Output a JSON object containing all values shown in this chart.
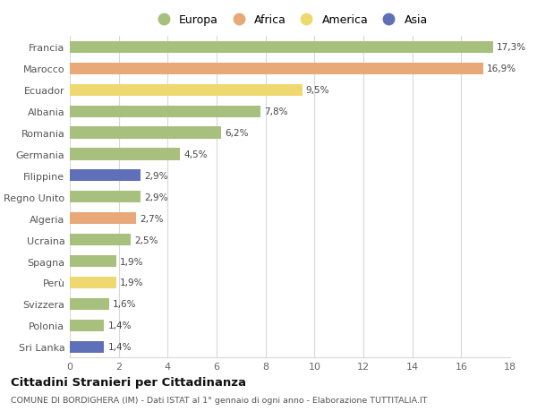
{
  "countries": [
    "Francia",
    "Marocco",
    "Ecuador",
    "Albania",
    "Romania",
    "Germania",
    "Filippine",
    "Regno Unito",
    "Algeria",
    "Ucraina",
    "Spagna",
    "Perù",
    "Svizzera",
    "Polonia",
    "Sri Lanka"
  ],
  "values": [
    17.3,
    16.9,
    9.5,
    7.8,
    6.2,
    4.5,
    2.9,
    2.9,
    2.7,
    2.5,
    1.9,
    1.9,
    1.6,
    1.4,
    1.4
  ],
  "labels": [
    "17,3%",
    "16,9%",
    "9,5%",
    "7,8%",
    "6,2%",
    "4,5%",
    "2,9%",
    "2,9%",
    "2,7%",
    "2,5%",
    "1,9%",
    "1,9%",
    "1,6%",
    "1,4%",
    "1,4%"
  ],
  "continents": [
    "Europa",
    "Africa",
    "America",
    "Europa",
    "Europa",
    "Europa",
    "Asia",
    "Europa",
    "Africa",
    "Europa",
    "Europa",
    "America",
    "Europa",
    "Europa",
    "Asia"
  ],
  "colors": {
    "Europa": "#a8c07e",
    "Africa": "#e8a878",
    "America": "#f0d870",
    "Asia": "#6070b8"
  },
  "title": "Cittadini Stranieri per Cittadinanza",
  "subtitle": "COMUNE DI BORDIGHERA (IM) - Dati ISTAT al 1° gennaio di ogni anno - Elaborazione TUTTITALIA.IT",
  "xlim": [
    0,
    18
  ],
  "xticks": [
    0,
    2,
    4,
    6,
    8,
    10,
    12,
    14,
    16,
    18
  ],
  "background_color": "#ffffff",
  "grid_color": "#d8d8d8",
  "bar_height": 0.55
}
